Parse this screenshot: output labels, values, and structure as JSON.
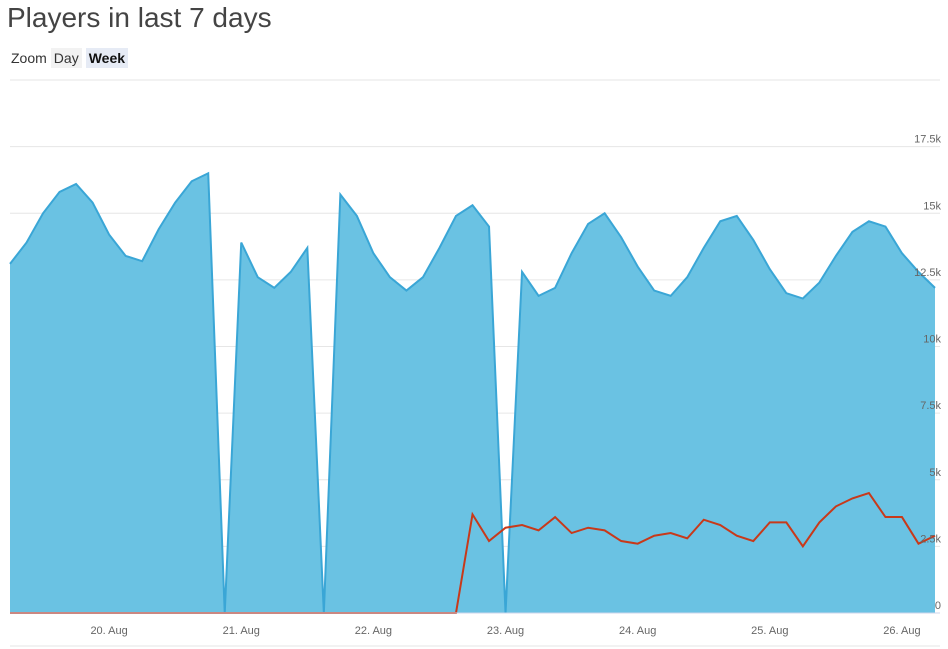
{
  "chart_data": {
    "type": "area",
    "title": "Players in last 7 days",
    "zoom_label": "Zoom",
    "zoom_options": [
      "Day",
      "Week"
    ],
    "zoom_selected": 1,
    "categories": [
      null,
      null,
      null,
      null,
      null,
      null,
      "20. Aug",
      null,
      null,
      null,
      null,
      null,
      null,
      null,
      "21. Aug",
      null,
      null,
      null,
      null,
      null,
      null,
      null,
      "22. Aug",
      null,
      null,
      null,
      null,
      null,
      null,
      null,
      "23. Aug",
      null,
      null,
      null,
      null,
      null,
      null,
      null,
      "24. Aug",
      null,
      null,
      null,
      null,
      null,
      null,
      null,
      "25. Aug",
      null,
      null,
      null,
      null,
      null,
      null,
      null,
      "26. Aug",
      null,
      null
    ],
    "series": [
      {
        "type": "area",
        "color": "#6ac2e3",
        "line_color": "#3aa6d6",
        "values": [
          13100,
          13900,
          15000,
          15800,
          16100,
          15400,
          14200,
          13400,
          13200,
          14400,
          15400,
          16200,
          16500,
          0,
          13900,
          12600,
          12200,
          12800,
          13700,
          0,
          15700,
          14900,
          13500,
          12600,
          12100,
          12600,
          13700,
          14900,
          15300,
          14500,
          0,
          12800,
          11900,
          12200,
          13500,
          14600,
          15000,
          14100,
          13000,
          12100,
          11900,
          12600,
          13700,
          14700,
          14900,
          14000,
          12900,
          12000,
          11800,
          12400,
          13400,
          14300,
          14700,
          14500,
          13500,
          12800,
          12200
        ]
      },
      {
        "type": "line",
        "color": "#c8391a",
        "values": [
          0,
          0,
          0,
          0,
          0,
          0,
          0,
          0,
          0,
          0,
          0,
          0,
          0,
          0,
          0,
          0,
          0,
          0,
          0,
          0,
          0,
          0,
          0,
          0,
          0,
          0,
          0,
          0,
          3700,
          2700,
          3200,
          3300,
          3100,
          3600,
          3000,
          3200,
          3100,
          2700,
          2600,
          2900,
          3000,
          2800,
          3500,
          3300,
          2900,
          2700,
          3400,
          3400,
          2500,
          3400,
          4000,
          4300,
          4500,
          3600,
          3600,
          2600,
          2900
        ]
      }
    ],
    "ylim": [
      0,
      20000
    ],
    "yticks": [
      0,
      {
        "value": 2500,
        "label": "2.5k"
      },
      {
        "value": 5000,
        "label": "5k"
      },
      {
        "value": 7500,
        "label": "7.5k"
      },
      {
        "value": 10000,
        "label": "10k"
      },
      {
        "value": 12500,
        "label": "12.5k"
      },
      {
        "value": 15000,
        "label": "15k"
      },
      {
        "value": 17500,
        "label": "17.5k"
      }
    ],
    "grid": true
  }
}
